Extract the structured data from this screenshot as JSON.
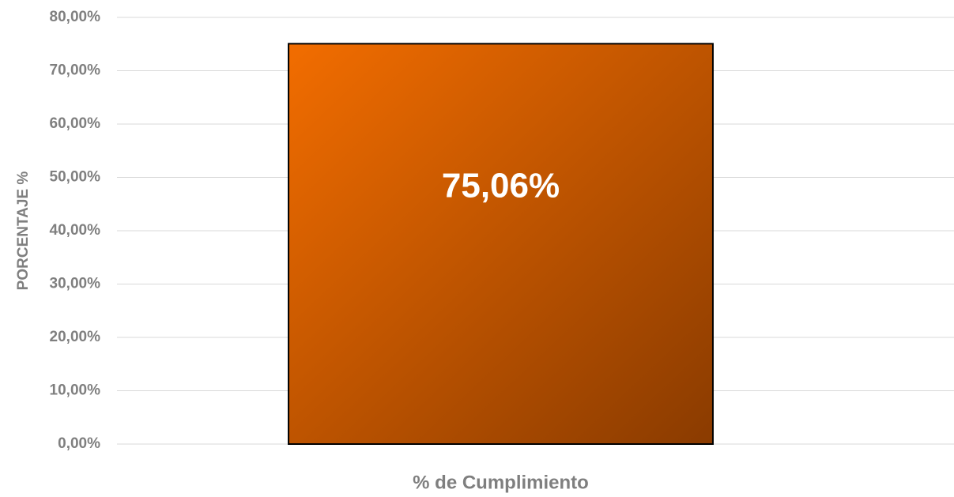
{
  "chart_data": {
    "type": "bar",
    "y_axis_label": "PORCENTAJE %",
    "categories": [
      "% de Cumplimiento"
    ],
    "values": [
      75.06
    ],
    "value_labels": [
      "75,06%"
    ],
    "gradient_colors": [
      "#f26d00",
      "#8a3b00"
    ],
    "ylim": [
      0,
      80
    ],
    "yticks": [
      {
        "value": 0,
        "label": "0,00%"
      },
      {
        "value": 10,
        "label": "10,00%"
      },
      {
        "value": 20,
        "label": "20,00%"
      },
      {
        "value": 30,
        "label": "30,00%"
      },
      {
        "value": 40,
        "label": "40,00%"
      },
      {
        "value": 50,
        "label": "50,00%"
      },
      {
        "value": 60,
        "label": "60,00%"
      },
      {
        "value": 70,
        "label": "70,00%"
      },
      {
        "value": 80,
        "label": "80,00%"
      }
    ],
    "grid": true
  }
}
